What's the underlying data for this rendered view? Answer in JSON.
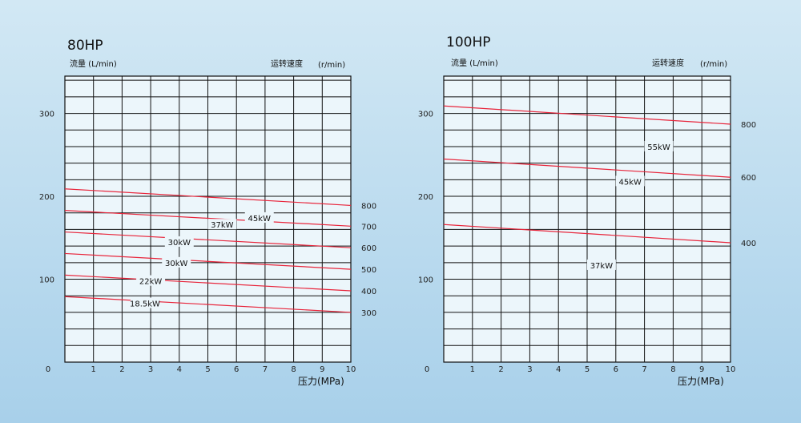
{
  "colors": {
    "grid": "#111111",
    "curve": "#e8253b",
    "plot_bg": "#ecf6fb"
  },
  "chart_data": [
    {
      "type": "line",
      "title": "80HP",
      "ylabel": "流量 (L/min)",
      "y2label_prefix": "运转速度",
      "y2label": "(r/min)",
      "xlabel": "压力(MPa)",
      "xlim": [
        0,
        10
      ],
      "ylim": [
        0,
        345
      ],
      "x_ticks": [
        0,
        1,
        2,
        3,
        4,
        5,
        6,
        7,
        8,
        9,
        10
      ],
      "y_ticks": [
        100,
        200,
        300
      ],
      "series": [
        {
          "name": "800",
          "x": [
            0,
            10
          ],
          "y": [
            209,
            189
          ]
        },
        {
          "name": "700",
          "x": [
            0,
            10
          ],
          "y": [
            183,
            164
          ]
        },
        {
          "name": "600",
          "x": [
            0,
            10
          ],
          "y": [
            157,
            138
          ]
        },
        {
          "name": "500",
          "x": [
            0,
            10
          ],
          "y": [
            131,
            112
          ]
        },
        {
          "name": "400",
          "x": [
            0,
            10
          ],
          "y": [
            105,
            86
          ]
        },
        {
          "name": "300",
          "x": [
            0,
            10
          ],
          "y": [
            79,
            60
          ]
        }
      ],
      "power_labels": [
        {
          "text": "45kW",
          "x": 6.8,
          "y": 174
        },
        {
          "text": "37kW",
          "x": 5.5,
          "y": 166
        },
        {
          "text": "30kW",
          "x": 4.0,
          "y": 145
        },
        {
          "text": "30kW",
          "x": 3.9,
          "y": 120
        },
        {
          "text": "22kW",
          "x": 3.0,
          "y": 98
        },
        {
          "text": "18.5kW",
          "x": 2.8,
          "y": 71
        }
      ]
    },
    {
      "type": "line",
      "title": "100HP",
      "ylabel": "流量 (L/min)",
      "y2label_prefix": "运转速度",
      "y2label": "(r/min)",
      "xlabel": "压力(MPa)",
      "xlim": [
        0,
        10
      ],
      "ylim": [
        0,
        345
      ],
      "x_ticks": [
        0,
        1,
        2,
        3,
        4,
        5,
        6,
        7,
        8,
        9,
        10
      ],
      "y_ticks": [
        100,
        200,
        300
      ],
      "series": [
        {
          "name": "800",
          "x": [
            0,
            10
          ],
          "y": [
            309,
            287
          ]
        },
        {
          "name": "600",
          "x": [
            0,
            10
          ],
          "y": [
            245,
            223
          ]
        },
        {
          "name": "400",
          "x": [
            0,
            10
          ],
          "y": [
            166,
            144
          ]
        }
      ],
      "power_labels": [
        {
          "text": "55kW",
          "x": 7.5,
          "y": 260
        },
        {
          "text": "45kW",
          "x": 6.5,
          "y": 218
        },
        {
          "text": "37kW",
          "x": 5.5,
          "y": 117
        }
      ]
    }
  ]
}
